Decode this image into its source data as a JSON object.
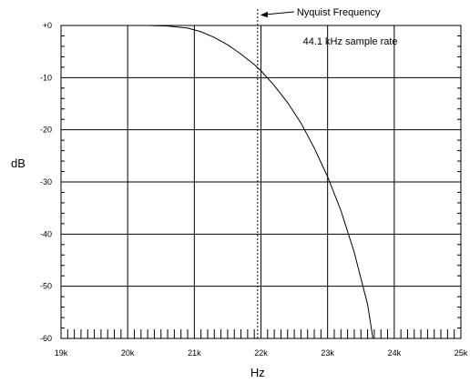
{
  "chart_data": {
    "type": "line",
    "title": "",
    "xlabel": "Hz",
    "ylabel": "dB",
    "xlim": [
      19000,
      25000
    ],
    "ylim": [
      -60,
      0
    ],
    "grid": true,
    "x_ticks": [
      {
        "value": 19000,
        "label": "19k"
      },
      {
        "value": 20000,
        "label": "20k"
      },
      {
        "value": 21000,
        "label": "21k"
      },
      {
        "value": 22000,
        "label": "22k"
      },
      {
        "value": 23000,
        "label": "23k"
      },
      {
        "value": 24000,
        "label": "24k"
      },
      {
        "value": 25000,
        "label": "25k"
      }
    ],
    "y_ticks": [
      {
        "value": 0,
        "label": "+0"
      },
      {
        "value": -10,
        "label": "-10"
      },
      {
        "value": -20,
        "label": "-20"
      },
      {
        "value": -30,
        "label": "-30"
      },
      {
        "value": -40,
        "label": "-40"
      },
      {
        "value": -50,
        "label": "-50"
      },
      {
        "value": -60,
        "label": "-60"
      }
    ],
    "series": [
      {
        "x": [
          20300,
          20600,
          20900,
          21100,
          21300,
          21500,
          21700,
          21900,
          22000,
          22200,
          22400,
          22600,
          22800,
          23000,
          23200,
          23400,
          23600,
          23680
        ],
        "y": [
          0,
          -0.1,
          -0.5,
          -1.2,
          -2.3,
          -3.7,
          -5.5,
          -7.5,
          -8.7,
          -11.5,
          -14.8,
          -18.7,
          -23.5,
          -29,
          -35.5,
          -43.5,
          -53.5,
          -60
        ]
      }
    ],
    "nyquist_x": 21950,
    "annotations": {
      "nyquist_label": "Nyquist Frequency",
      "sample_rate_label": "44.1 kHz sample rate"
    }
  }
}
